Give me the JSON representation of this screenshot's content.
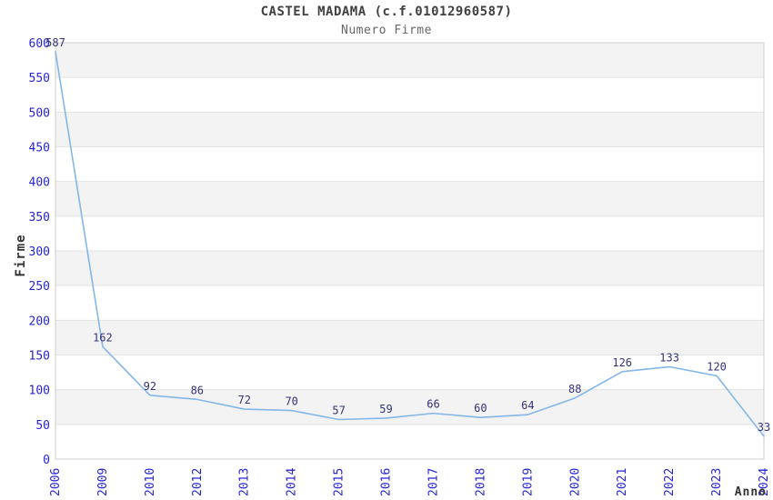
{
  "chart_data": {
    "type": "line",
    "title": "CASTEL MADAMA (c.f.01012960587)",
    "subtitle": "Numero Firme",
    "xlabel": "Anno",
    "ylabel": "Firme",
    "categories": [
      "2006",
      "2009",
      "2010",
      "2012",
      "2013",
      "2014",
      "2015",
      "2016",
      "2017",
      "2018",
      "2019",
      "2020",
      "2021",
      "2022",
      "2023",
      "2024"
    ],
    "values": [
      587,
      162,
      92,
      86,
      72,
      70,
      57,
      59,
      66,
      60,
      64,
      88,
      126,
      133,
      120,
      33
    ],
    "ylim": [
      0,
      600
    ],
    "ytick_step": 50,
    "grid": "horizontal-bands",
    "legend_position": "none",
    "point_labels_visible": true,
    "colors": {
      "line": "#84b6e8",
      "point_label": "#333377",
      "tick_label": "#2525d0",
      "band": "#f3f3f3",
      "gridline": "#e3e3e3",
      "plot_border": "#cccccc",
      "title": "#404040",
      "subtitle": "#666666",
      "axis_label": "#333333"
    }
  }
}
